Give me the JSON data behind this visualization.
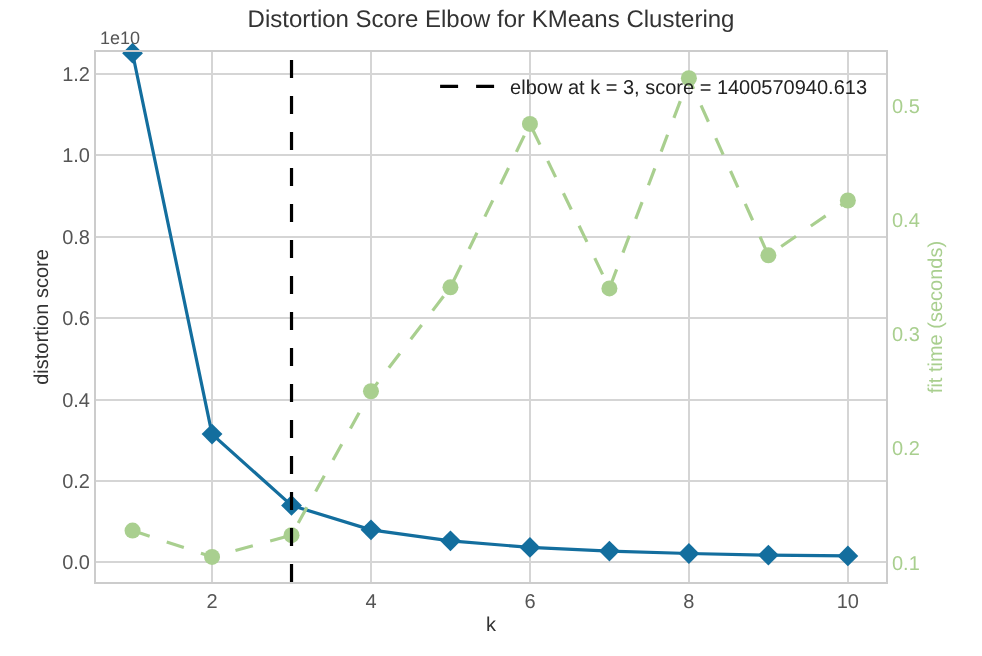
{
  "chart_data": {
    "type": "line",
    "title": "Distortion Score Elbow for KMeans Clustering",
    "xlabel": "k",
    "ylabel": "distortion score",
    "y2label": "fit time (seconds)",
    "x": [
      1,
      2,
      3,
      4,
      5,
      6,
      7,
      8,
      9,
      10
    ],
    "series": [
      {
        "color": "#136e9e",
        "marker": "diamond",
        "line_style": "solid",
        "values": [
          1.25,
          0.315,
          0.14,
          0.08,
          0.053,
          0.037,
          0.028,
          0.022,
          0.018,
          0.016
        ]
      },
      {
        "color": "#a9cf8f",
        "marker": "circle",
        "line_style": "dashed",
        "axis": "y2",
        "values": [
          0.128,
          0.105,
          0.124,
          0.25,
          0.341,
          0.484,
          0.34,
          0.524,
          0.369,
          0.417
        ]
      }
    ],
    "xlim": [
      0.54,
      10.48
    ],
    "xticks": [
      2,
      4,
      6,
      8,
      10
    ],
    "ylim": [
      -0.048,
      1.253
    ],
    "yticks": [
      {
        "value": 0,
        "label": "0.0"
      },
      0.2,
      0.4,
      0.6,
      0.8,
      {
        "value": 1,
        "label": "1.0"
      },
      1.2
    ],
    "y2lim": [
      0.083,
      0.547
    ],
    "y2ticks": [
      0.1,
      0.2,
      0.3,
      0.4,
      0.5
    ],
    "ref_lines": [
      {
        "axis": "x",
        "value": 3,
        "label": "elbow at k = 3, score = 1400570940.613",
        "color": "#000000",
        "line_style": "dashed"
      }
    ],
    "annotations": [
      "1e10"
    ],
    "grid": true,
    "legend": "top right"
  }
}
